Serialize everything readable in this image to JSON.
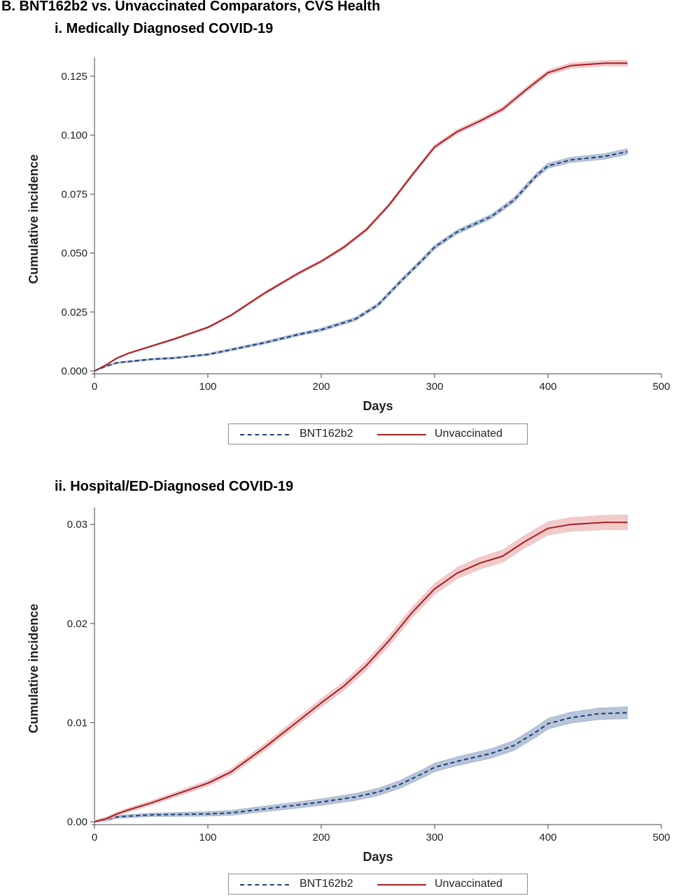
{
  "figure_title": "B. BNT162b2 vs. Unvaccinated Comparators, CVS Health",
  "colors": {
    "bnt162b2": "#1f3f73",
    "bnt162b2_band": "#9fb0cc",
    "unvaccinated": "#a31f24",
    "unvaccinated_band": "#efb8b8"
  },
  "chart_data": [
    {
      "type": "line",
      "title": "i. Medically Diagnosed COVID-19",
      "xlabel": "Days",
      "ylabel": "Cumulative incidence",
      "xlim": [
        0,
        500
      ],
      "ylim": [
        0,
        0.13
      ],
      "x_ticks": [
        0,
        100,
        200,
        300,
        400,
        500
      ],
      "x_tick_labels": [
        "0",
        "100",
        "200",
        "300",
        "400",
        "500"
      ],
      "y_ticks": [
        0,
        0.025,
        0.05,
        0.075,
        0.1,
        0.125
      ],
      "y_tick_labels": [
        "0.000",
        "0.025",
        "0.050",
        "0.075",
        "0.100",
        "0.125"
      ],
      "grid": false,
      "legend_position": "bottom",
      "series": [
        {
          "name": "BNT162b2",
          "style": "dashed",
          "band": 0.0008,
          "x": [
            0,
            10,
            20,
            50,
            70,
            100,
            120,
            150,
            180,
            200,
            230,
            250,
            270,
            290,
            300,
            320,
            350,
            370,
            390,
            400,
            420,
            450,
            470
          ],
          "y": [
            0,
            0.002,
            0.0035,
            0.005,
            0.0055,
            0.007,
            0.009,
            0.012,
            0.0155,
            0.0175,
            0.022,
            0.028,
            0.038,
            0.0475,
            0.0525,
            0.059,
            0.0655,
            0.0725,
            0.083,
            0.087,
            0.0895,
            0.091,
            0.093
          ]
        },
        {
          "name": "Unvaccinated",
          "style": "solid",
          "band": 0.0008,
          "x": [
            0,
            10,
            20,
            30,
            50,
            70,
            100,
            120,
            150,
            180,
            200,
            220,
            240,
            260,
            280,
            300,
            320,
            340,
            360,
            380,
            400,
            420,
            450,
            470
          ],
          "y": [
            0,
            0.0025,
            0.0055,
            0.0075,
            0.0105,
            0.0135,
            0.0185,
            0.0235,
            0.033,
            0.0415,
            0.0465,
            0.0525,
            0.06,
            0.0705,
            0.083,
            0.095,
            0.1015,
            0.106,
            0.111,
            0.119,
            0.1265,
            0.1295,
            0.1305,
            0.1305
          ]
        }
      ]
    },
    {
      "type": "line",
      "title": "ii. Hospital/ED-Diagnosed COVID-19",
      "xlabel": "Days",
      "ylabel": "Cumulative incidence",
      "xlim": [
        0,
        500
      ],
      "ylim": [
        0,
        0.031
      ],
      "x_ticks": [
        0,
        100,
        200,
        300,
        400,
        500
      ],
      "x_tick_labels": [
        "0",
        "100",
        "200",
        "300",
        "400",
        "500"
      ],
      "y_ticks": [
        0,
        0.01,
        0.02,
        0.03
      ],
      "y_tick_labels": [
        "0.00",
        "0.01",
        "0.02",
        "0.03"
      ],
      "grid": false,
      "legend_position": "bottom",
      "series": [
        {
          "name": "BNT162b2",
          "style": "dashed",
          "band": 0.0004,
          "x": [
            0,
            10,
            20,
            50,
            100,
            120,
            150,
            180,
            200,
            230,
            250,
            270,
            290,
            300,
            320,
            350,
            370,
            390,
            400,
            420,
            445,
            470
          ],
          "y": [
            0,
            0.0002,
            0.0005,
            0.0007,
            0.0008,
            0.0009,
            0.0013,
            0.0017,
            0.002,
            0.0025,
            0.003,
            0.0038,
            0.0049,
            0.0055,
            0.0061,
            0.0069,
            0.0077,
            0.0091,
            0.0099,
            0.0105,
            0.0109,
            0.011
          ]
        },
        {
          "name": "Unvaccinated",
          "style": "solid",
          "band": 0.0005,
          "x": [
            0,
            10,
            20,
            30,
            50,
            70,
            100,
            120,
            150,
            180,
            200,
            220,
            240,
            260,
            280,
            300,
            320,
            340,
            360,
            380,
            400,
            420,
            450,
            470
          ],
          "y": [
            0,
            0.0003,
            0.0008,
            0.0012,
            0.0019,
            0.0027,
            0.0039,
            0.005,
            0.0075,
            0.0102,
            0.012,
            0.0137,
            0.0158,
            0.0183,
            0.0211,
            0.0235,
            0.0251,
            0.0261,
            0.0268,
            0.0283,
            0.0296,
            0.03,
            0.0302,
            0.0302
          ]
        }
      ]
    }
  ],
  "legends": [
    {
      "items": [
        "BNT162b2",
        "Unvaccinated"
      ]
    },
    {
      "items": [
        "BNT162b2",
        "Unvaccinated"
      ]
    }
  ]
}
